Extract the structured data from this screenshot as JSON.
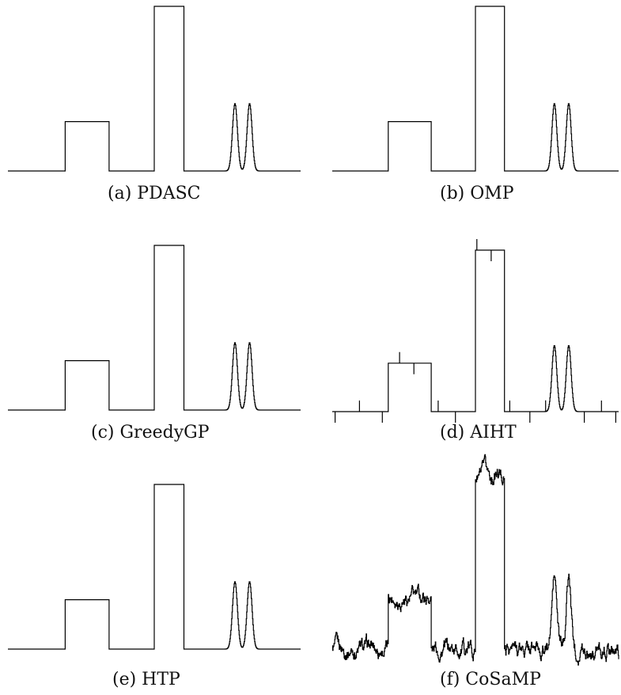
{
  "figure": {
    "background": "#ffffff",
    "line_color": "#000000"
  },
  "chart_data": [
    {
      "type": "line",
      "caption": "(a) PDASC",
      "signal": "clean",
      "x": [
        0,
        1
      ],
      "ylim": [
        0,
        1
      ]
    },
    {
      "type": "line",
      "caption": "(b) OMP",
      "signal": "clean",
      "x": [
        0,
        1
      ],
      "ylim": [
        0,
        1
      ]
    },
    {
      "type": "line",
      "caption": "(c) GreedyGP",
      "signal": "clean",
      "x": [
        0,
        1
      ],
      "ylim": [
        0,
        1
      ]
    },
    {
      "type": "line",
      "caption": "(d) AIHT",
      "signal": "spiky",
      "x": [
        0,
        1
      ],
      "ylim": [
        0,
        1
      ]
    },
    {
      "type": "line",
      "caption": "(e) HTP",
      "signal": "clean",
      "x": [
        0,
        1
      ],
      "ylim": [
        0,
        1
      ]
    },
    {
      "type": "line",
      "caption": "(f) CoSaMP",
      "signal": "noisy",
      "x": [
        0,
        1
      ],
      "ylim": [
        0,
        1
      ]
    }
  ]
}
